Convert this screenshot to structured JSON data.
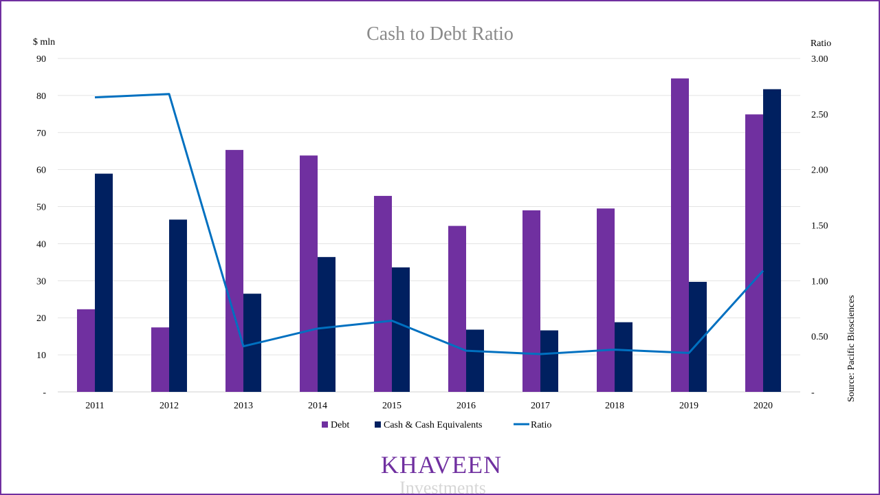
{
  "chart_data": {
    "type": "bar",
    "title": "Cash to Debt Ratio",
    "y_left_label": "$ mln",
    "y_right_label": "Ratio",
    "y_left_ticks": [
      "-",
      "10",
      "20",
      "30",
      "40",
      "50",
      "60",
      "70",
      "80",
      "90"
    ],
    "y_right_ticks": [
      "-",
      "0.50",
      "1.00",
      "1.50",
      "2.00",
      "2.50",
      "3.00"
    ],
    "ylim_left": [
      0,
      90
    ],
    "ylim_right": [
      0,
      3
    ],
    "categories": [
      "2011",
      "2012",
      "2013",
      "2014",
      "2015",
      "2016",
      "2017",
      "2018",
      "2019",
      "2020"
    ],
    "series": [
      {
        "name": "Debt",
        "type": "bar",
        "axis": "left",
        "color": "#7030a0",
        "values": [
          22.3,
          17.4,
          65.3,
          63.8,
          52.9,
          44.8,
          49.0,
          49.5,
          84.6,
          74.9
        ]
      },
      {
        "name": "Cash & Cash Equivalents",
        "type": "bar",
        "axis": "left",
        "color": "#002060",
        "values": [
          58.9,
          46.5,
          26.5,
          36.4,
          33.6,
          16.8,
          16.6,
          18.8,
          29.7,
          81.7
        ]
      },
      {
        "name": "Ratio",
        "type": "line",
        "axis": "right",
        "color": "#0070c0",
        "values": [
          2.65,
          2.68,
          0.41,
          0.57,
          0.64,
          0.37,
          0.34,
          0.38,
          0.35,
          1.09
        ]
      }
    ],
    "gridlines": true,
    "legend_position": "bottom",
    "source": "Source: Pacific Biosciences"
  },
  "branding": {
    "logo_main": "KHAVEEN",
    "logo_sub": "Investments"
  }
}
